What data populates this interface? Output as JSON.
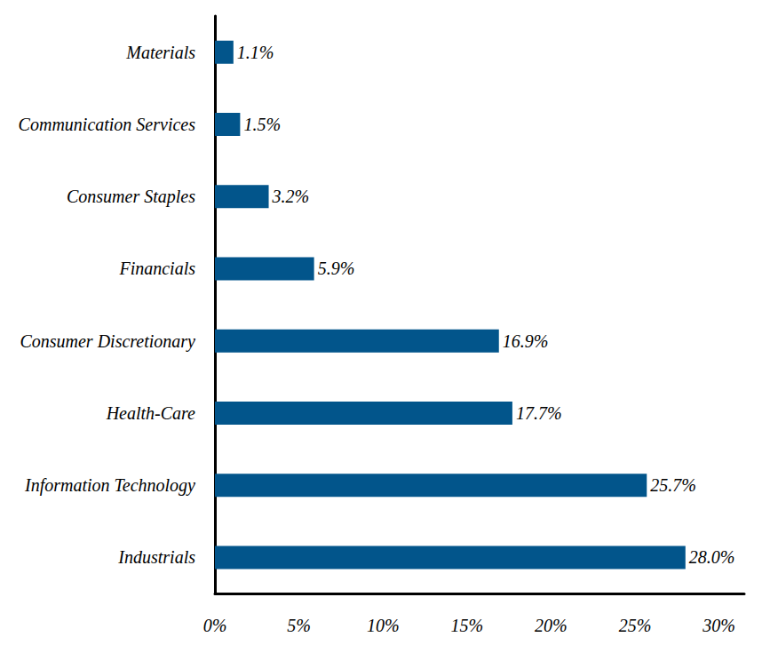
{
  "chart_data": {
    "type": "bar",
    "orientation": "horizontal",
    "categories": [
      "Materials",
      "Communication Services",
      "Consumer Staples",
      "Financials",
      "Consumer Discretionary",
      "Health-Care",
      "Information Technology",
      "Industrials"
    ],
    "values": [
      1.1,
      1.5,
      3.2,
      5.9,
      16.9,
      17.7,
      25.7,
      28.0
    ],
    "value_labels": [
      "1.1%",
      "1.5%",
      "3.2%",
      "5.9%",
      "16.9%",
      "17.7%",
      "25.7%",
      "28.0%"
    ],
    "color": "#02558b",
    "xlim": [
      0,
      31.5
    ],
    "xticks": [
      {
        "value": 0,
        "label": "0%"
      },
      {
        "value": 5,
        "label": "5%"
      },
      {
        "value": 10,
        "label": "10%"
      },
      {
        "value": 15,
        "label": "15%"
      },
      {
        "value": 20,
        "label": "20%"
      },
      {
        "value": 25,
        "label": "25%"
      },
      {
        "value": 30,
        "label": "30%"
      }
    ],
    "grid": false,
    "data_labels": true
  }
}
